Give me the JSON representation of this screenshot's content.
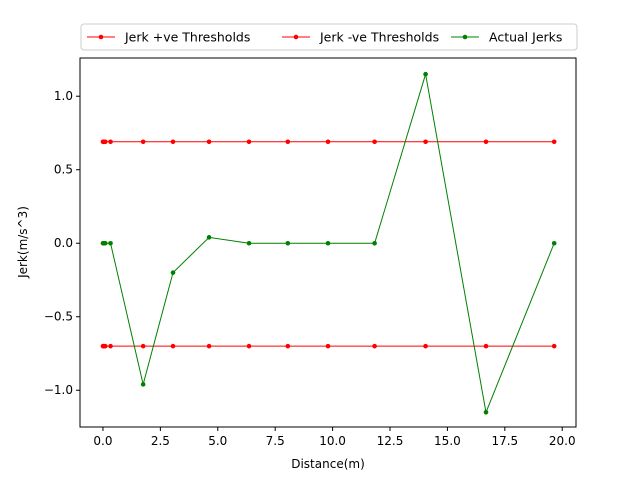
{
  "chart_data": {
    "type": "line",
    "title": "",
    "xlabel": "Distance(m)",
    "ylabel": "Jerk(m/s^3)",
    "xlim": [
      -1.0,
      20.6
    ],
    "ylim": [
      -1.25,
      1.26
    ],
    "x_ticks": [
      0.0,
      2.5,
      5.0,
      7.5,
      10.0,
      12.5,
      15.0,
      17.5,
      20.0
    ],
    "x_tick_labels": [
      "0.0",
      "2.5",
      "5.0",
      "7.5",
      "10.0",
      "12.5",
      "15.0",
      "17.5",
      "20.0"
    ],
    "y_ticks": [
      -1.0,
      -0.5,
      0.0,
      0.5,
      1.0
    ],
    "y_tick_labels": [
      "−1.0",
      "−0.5",
      "0.0",
      "0.5",
      "1.0"
    ],
    "grid": false,
    "legend_position": "top-center, above plot",
    "x": [
      0.0,
      0.02,
      0.05,
      0.1,
      0.33,
      1.75,
      3.05,
      4.62,
      6.36,
      8.05,
      9.8,
      11.83,
      14.05,
      16.68,
      19.65
    ],
    "series": [
      {
        "name": "Jerk +ve Thresholds",
        "color": "#ff0000",
        "values": [
          0.69,
          0.69,
          0.69,
          0.69,
          0.69,
          0.69,
          0.69,
          0.69,
          0.69,
          0.69,
          0.69,
          0.69,
          0.69,
          0.69,
          0.69
        ]
      },
      {
        "name": "Jerk -ve Thresholds",
        "color": "#ff0000",
        "values": [
          -0.7,
          -0.7,
          -0.7,
          -0.7,
          -0.7,
          -0.7,
          -0.7,
          -0.7,
          -0.7,
          -0.7,
          -0.7,
          -0.7,
          -0.7,
          -0.7,
          -0.7
        ]
      },
      {
        "name": "Actual Jerks",
        "color": "#008000",
        "values": [
          0.0,
          0.0,
          0.0,
          0.0,
          0.0,
          -0.96,
          -0.2,
          0.04,
          0.0,
          0.0,
          0.0,
          0.0,
          1.15,
          -1.15,
          0.0
        ]
      }
    ]
  }
}
